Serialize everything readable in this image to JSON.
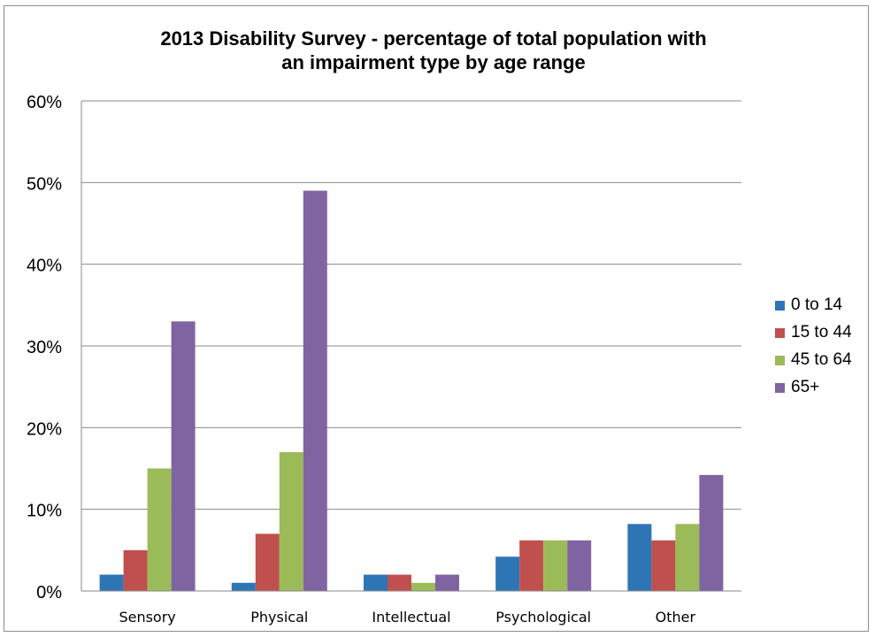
{
  "chart_data": {
    "type": "bar",
    "title": "2013 Disability  Survey - percentage of total population with an impairment type by age range",
    "title_lines": [
      "2013 Disability  Survey - percentage of total population with",
      "an impairment type by age range"
    ],
    "categories": [
      "Sensory",
      "Physical",
      "Intellectual",
      "Psychological",
      "Other"
    ],
    "series": [
      {
        "name": "0 to 14",
        "color": "#2e75b6",
        "values": [
          2,
          1,
          2,
          4.2,
          8.2
        ]
      },
      {
        "name": "15 to 44",
        "color": "#c0504d",
        "values": [
          5,
          7,
          2,
          6.2,
          6.2
        ]
      },
      {
        "name": "45 to 64",
        "color": "#9bbb59",
        "values": [
          15,
          17,
          1,
          6.2,
          8.2
        ]
      },
      {
        "name": "65+",
        "color": "#8064a2",
        "values": [
          33,
          49,
          2,
          6.2,
          14.2
        ]
      }
    ],
    "yticks": [
      "0%",
      "10%",
      "20%",
      "30%",
      "40%",
      "50%",
      "60%"
    ],
    "ylim": [
      0,
      60
    ],
    "xlabel": "",
    "ylabel": "",
    "grid": true,
    "legend_position": "right"
  }
}
